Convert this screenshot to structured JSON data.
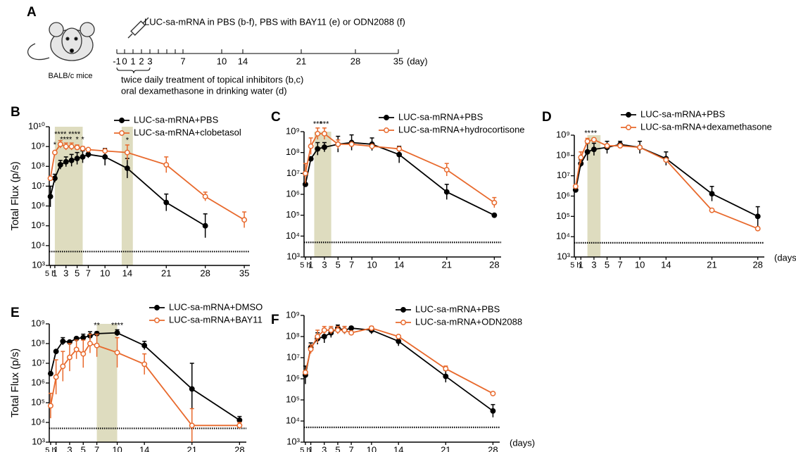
{
  "timeline": {
    "panel": "A",
    "injection": "LUC-sa-mRNA in PBS (b-f), PBS with BAY11 (e) or ODN2088 (f)",
    "mouse": "BALB/c mice",
    "ticks": [
      -1,
      0,
      1,
      2,
      3,
      7,
      10,
      14,
      21,
      28,
      35
    ],
    "unit": "(day)",
    "notes": [
      "twice daily treatment of topical inhibitors (b,c)",
      "oral dexamethasone in drinking water (d)"
    ]
  },
  "chart_data": [
    {
      "type": "line",
      "panel": "B",
      "y_label": "Total Flux (p/s)",
      "log_y": true,
      "x": [
        0.2,
        1,
        2,
        3,
        4,
        5,
        6,
        7,
        10,
        14,
        21,
        28,
        35
      ],
      "series": [
        {
          "name": "LUC-sa-mRNA+PBS",
          "color": "#000000",
          "marker": "filled",
          "values": [
            3000000.0,
            25000000.0,
            120000000.0,
            170000000.0,
            200000000.0,
            250000000.0,
            300000000.0,
            400000000.0,
            300000000.0,
            80000000.0,
            1500000.0,
            100000.0,
            null
          ],
          "upper": [
            10000000.0,
            40000000.0,
            200000000.0,
            300000000.0,
            400000000.0,
            500000000.0,
            600000000.0,
            600000000.0,
            800000000.0,
            250000000.0,
            4000000.0,
            400000.0,
            null
          ]
        },
        {
          "name": "LUC-sa-mRNA+clobetasol",
          "color": "#e8692c",
          "marker": "open",
          "values": [
            25000000.0,
            500000000.0,
            1300000000.0,
            1000000000.0,
            1000000000.0,
            900000000.0,
            800000000.0,
            700000000.0,
            600000000.0,
            500000000.0,
            120000000.0,
            3000000.0,
            200000.0
          ],
          "upper": [
            null,
            null,
            2000000000.0,
            1500000000.0,
            1500000000.0,
            1200000000.0,
            1000000000.0,
            null,
            null,
            1200000000.0,
            300000000.0,
            5000000.0,
            500000.0
          ]
        }
      ],
      "shaded": [
        [
          1,
          6
        ],
        [
          13,
          15
        ]
      ],
      "detection_limit": 5000,
      "annotations": [
        {
          "x": 1,
          "y": 1200000000.0,
          "text": "*"
        },
        {
          "x": 2,
          "y": 4000000000.0,
          "text": "****"
        },
        {
          "x": 3,
          "y": 2200000000.0,
          "text": "****"
        },
        {
          "x": 4.5,
          "y": 4000000000.0,
          "text": "****"
        },
        {
          "x": 5,
          "y": 2200000000.0,
          "text": "*"
        },
        {
          "x": 6,
          "y": 2200000000.0,
          "text": "*"
        },
        {
          "x": 14,
          "y": 2000000000.0,
          "text": "*"
        }
      ],
      "xlim": [
        0,
        36
      ],
      "xticks": [
        {
          "value": 0.2,
          "label": "5 h"
        },
        1,
        3,
        5,
        7,
        10,
        14,
        21,
        28,
        35
      ],
      "ylim": [
        1000,
        10000000000
      ],
      "yticks": [
        {
          "value": 1000,
          "label": "10³"
        },
        {
          "value": 10000,
          "label": "10⁴"
        },
        {
          "value": 100000,
          "label": "10⁵"
        },
        {
          "value": 1000000,
          "label": "10⁶"
        },
        {
          "value": 10000000,
          "label": "10⁷"
        },
        {
          "value": 100000000,
          "label": "10⁸"
        },
        {
          "value": 1000000000,
          "label": "10⁹"
        },
        {
          "value": 10000000000,
          "label": "10¹⁰"
        }
      ]
    },
    {
      "type": "line",
      "panel": "C",
      "log_y": true,
      "x": [
        0.2,
        1,
        2,
        3,
        5,
        7,
        10,
        14,
        21,
        28
      ],
      "series": [
        {
          "name": "LUC-sa-mRNA+PBS",
          "color": "#000000",
          "marker": "filled",
          "values": [
            3000000.0,
            50000000.0,
            150000000.0,
            180000000.0,
            250000000.0,
            300000000.0,
            250000000.0,
            80000000.0,
            1300000.0,
            100000.0
          ],
          "upper": [
            null,
            null,
            300000000.0,
            300000000.0,
            600000000.0,
            700000000.0,
            500000000.0,
            200000000.0,
            3000000.0,
            null
          ]
        },
        {
          "name": "LUC-sa-mRNA+hydrocortisone",
          "color": "#e8692c",
          "marker": "open",
          "values": [
            10000000.0,
            200000000.0,
            800000000.0,
            800000000.0,
            250000000.0,
            250000000.0,
            200000000.0,
            150000000.0,
            15000000.0,
            400000.0
          ],
          "upper": [
            30000000.0,
            500000000.0,
            1500000000.0,
            1500000000.0,
            400000000.0,
            null,
            null,
            null,
            30000000.0,
            700000.0
          ]
        }
      ],
      "shaded": [
        [
          1.5,
          4
        ]
      ],
      "detection_limit": 5000,
      "annotations": [
        {
          "x": 2,
          "y": 2200000000.0,
          "text": "***"
        },
        {
          "x": 3,
          "y": 2200000000.0,
          "text": "***"
        }
      ],
      "xlim": [
        0,
        29
      ],
      "xticks": [
        {
          "value": 0.2,
          "label": "5 h"
        },
        1,
        3,
        5,
        7,
        10,
        14,
        21,
        28
      ],
      "ylim": [
        1000,
        1000000000
      ],
      "yticks": [
        {
          "value": 1000,
          "label": "10³"
        },
        {
          "value": 10000,
          "label": "10⁴"
        },
        {
          "value": 100000,
          "label": "10⁵"
        },
        {
          "value": 1000000,
          "label": "10⁶"
        },
        {
          "value": 10000000,
          "label": "10⁷"
        },
        {
          "value": 100000000,
          "label": "10⁸"
        },
        {
          "value": 1000000000,
          "label": "10⁹"
        }
      ]
    },
    {
      "type": "line",
      "panel": "D",
      "x_label": "(days)",
      "log_y": true,
      "x": [
        0.2,
        1,
        2,
        3,
        5,
        7,
        10,
        14,
        21,
        28
      ],
      "series": [
        {
          "name": "LUC-sa-mRNA+PBS",
          "color": "#000000",
          "marker": "filled",
          "values": [
            2000000.0,
            40000000.0,
            150000000.0,
            200000000.0,
            250000000.0,
            350000000.0,
            250000000.0,
            70000000.0,
            1300000.0,
            100000.0
          ],
          "upper": [
            null,
            60000000.0,
            400000000.0,
            400000000.0,
            500000000.0,
            500000000.0,
            500000000.0,
            150000000.0,
            3000000.0,
            300000.0
          ]
        },
        {
          "name": "LUC-sa-mRNA+dexamethasone",
          "color": "#e8692c",
          "marker": "open",
          "values": [
            3000000.0,
            80000000.0,
            500000000.0,
            600000000.0,
            300000000.0,
            300000000.0,
            250000000.0,
            60000000.0,
            200000.0,
            25000.0
          ],
          "upper": [
            null,
            150000000.0,
            700000000.0,
            700000000.0,
            null,
            null,
            null,
            null,
            null,
            null
          ]
        }
      ],
      "shaded": [
        [
          2,
          4
        ]
      ],
      "detection_limit": 5000,
      "annotations": [
        {
          "x": 2,
          "y": 1200000000.0,
          "text": "**"
        },
        {
          "x": 3,
          "y": 1200000000.0,
          "text": "**"
        }
      ],
      "xlim": [
        0,
        29
      ],
      "xticks": [
        {
          "value": 0.2,
          "label": "5 h"
        },
        1,
        3,
        5,
        7,
        10,
        14,
        21,
        28
      ],
      "ylim": [
        1000,
        1000000000
      ],
      "yticks": [
        {
          "value": 1000,
          "label": "10³"
        },
        {
          "value": 10000,
          "label": "10⁴"
        },
        {
          "value": 100000,
          "label": "10⁵"
        },
        {
          "value": 1000000,
          "label": "10⁶"
        },
        {
          "value": 10000000,
          "label": "10⁷"
        },
        {
          "value": 100000000,
          "label": "10⁸"
        },
        {
          "value": 1000000000,
          "label": "10⁹"
        }
      ]
    },
    {
      "type": "line",
      "panel": "E",
      "y_label": "Total Flux (p/s)",
      "log_y": true,
      "x": [
        0.2,
        1,
        2,
        3,
        4,
        5,
        6,
        7,
        10,
        14,
        21,
        28
      ],
      "series": [
        {
          "name": "LUC-sa-mRNA+DMSO",
          "color": "#000000",
          "marker": "filled",
          "values": [
            3000000.0,
            40000000.0,
            130000000.0,
            120000000.0,
            180000000.0,
            200000000.0,
            250000000.0,
            320000000.0,
            350000000.0,
            80000000.0,
            500000.0,
            13000.0
          ],
          "upper": [
            null,
            null,
            200000000.0,
            null,
            null,
            300000000.0,
            400000000.0,
            400000000.0,
            500000000.0,
            130000000.0,
            10000000.0,
            20000.0
          ]
        },
        {
          "name": "LUC-sa-mRNA+BAY11",
          "color": "#e8692c",
          "marker": "open",
          "values": [
            70000.0,
            2000000.0,
            7000000.0,
            20000000.0,
            50000000.0,
            30000000.0,
            100000000.0,
            80000000.0,
            35000000.0,
            9000000.0,
            7000.0,
            7000.0
          ],
          "upper": [
            300000.0,
            15000000.0,
            40000000.0,
            100000000.0,
            150000000.0,
            150000000.0,
            300000000.0,
            300000000.0,
            200000000.0,
            30000000.0,
            50000.0,
            10000.0
          ]
        }
      ],
      "shaded": [
        [
          7,
          10
        ]
      ],
      "detection_limit": 5000,
      "annotations": [
        {
          "x": 7,
          "y": 800000000.0,
          "text": "**"
        },
        {
          "x": 10,
          "y": 800000000.0,
          "text": "****"
        }
      ],
      "xlim": [
        0,
        29
      ],
      "xticks": [
        {
          "value": 0.2,
          "label": "5 h"
        },
        1,
        3,
        5,
        7,
        10,
        14,
        21,
        28
      ],
      "ylim": [
        1000,
        1000000000
      ],
      "yticks": [
        {
          "value": 1000,
          "label": "10³"
        },
        {
          "value": 10000,
          "label": "10⁴"
        },
        {
          "value": 100000,
          "label": "10⁵"
        },
        {
          "value": 1000000,
          "label": "10⁶"
        },
        {
          "value": 10000000,
          "label": "10⁷"
        },
        {
          "value": 100000000,
          "label": "10⁸"
        },
        {
          "value": 1000000000,
          "label": "10⁹"
        }
      ]
    },
    {
      "type": "line",
      "panel": "F",
      "x_label": "(days)",
      "log_y": true,
      "x": [
        0.2,
        1,
        2,
        3,
        4,
        5,
        6,
        7,
        10,
        14,
        21,
        28
      ],
      "series": [
        {
          "name": "LUC-sa-mRNA+PBS",
          "color": "#000000",
          "marker": "filled",
          "values": [
            1500000.0,
            30000000.0,
            80000000.0,
            100000000.0,
            150000000.0,
            250000000.0,
            200000000.0,
            250000000.0,
            200000000.0,
            60000000.0,
            1300000.0,
            30000.0
          ],
          "upper": [
            4000000.0,
            50000000.0,
            150000000.0,
            200000000.0,
            250000000.0,
            350000000.0,
            300000000.0,
            300000000.0,
            300000000.0,
            100000000.0,
            2500000.0,
            60000.0
          ]
        },
        {
          "name": "LUC-sa-mRNA+ODN2088",
          "color": "#e8692c",
          "marker": "open",
          "values": [
            2000000.0,
            25000000.0,
            100000000.0,
            200000000.0,
            200000000.0,
            200000000.0,
            200000000.0,
            150000000.0,
            250000000.0,
            100000000.0,
            3000000.0,
            200000.0
          ],
          "upper": [
            null,
            40000000.0,
            200000000.0,
            300000000.0,
            300000000.0,
            300000000.0,
            300000000.0,
            null,
            300000000.0,
            null,
            4000000.0,
            null
          ]
        }
      ],
      "detection_limit": 5000,
      "xlim": [
        0,
        29
      ],
      "xticks": [
        {
          "value": 0.2,
          "label": "5 h"
        },
        1,
        3,
        5,
        7,
        10,
        14,
        21,
        28
      ],
      "ylim": [
        1000,
        1000000000
      ],
      "yticks": [
        {
          "value": 1000,
          "label": "10³"
        },
        {
          "value": 10000,
          "label": "10⁴"
        },
        {
          "value": 100000,
          "label": "10⁵"
        },
        {
          "value": 1000000,
          "label": "10⁶"
        },
        {
          "value": 10000000,
          "label": "10⁷"
        },
        {
          "value": 100000000,
          "label": "10⁸"
        },
        {
          "value": 1000000000,
          "label": "10⁹"
        }
      ]
    }
  ]
}
